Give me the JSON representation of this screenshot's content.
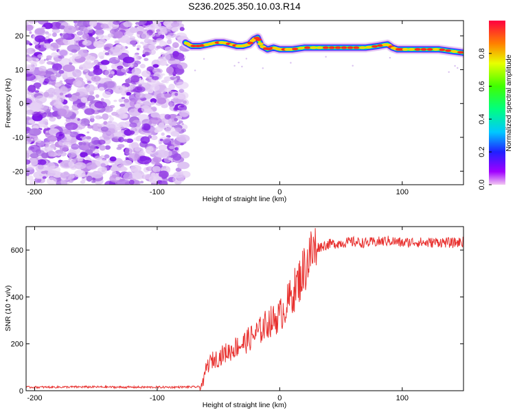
{
  "title": "S236.2025.350.10.03.R14",
  "chart_data": [
    {
      "type": "heatmap",
      "xlabel": "Height of straight line (km)",
      "ylabel": "Frequency (Hz)",
      "xlim": [
        -207,
        150
      ],
      "ylim": [
        -24,
        24.5
      ],
      "xticks": [
        -200,
        -100,
        0,
        100
      ],
      "yticks": [
        -20,
        -10,
        0,
        10,
        20
      ],
      "noise_region_x": [
        -207,
        -77
      ],
      "ridge": {
        "x": [
          -77,
          -72,
          -65,
          -58,
          -52,
          -46,
          -40,
          -35,
          -30,
          -25,
          -21,
          -18,
          -15,
          -10,
          -5,
          0,
          5,
          10,
          20,
          30,
          40,
          50,
          60,
          70,
          80,
          88,
          92,
          96,
          100,
          110,
          120,
          130,
          140,
          150
        ],
        "hz": [
          18,
          17,
          17,
          17.5,
          18,
          18,
          17.5,
          17,
          17,
          17.5,
          19,
          19.5,
          17,
          16,
          16.5,
          16,
          16,
          16,
          16.5,
          16.5,
          16.5,
          16.5,
          16.5,
          16.5,
          17,
          17.5,
          16.5,
          16,
          16,
          16,
          16,
          16,
          15.5,
          15
        ]
      },
      "colorbar": {
        "label": "Normalized spectral amplitude",
        "range": [
          0,
          1
        ],
        "ticks": [
          0.0,
          0.2,
          0.4,
          0.6,
          0.8
        ],
        "tick_labels": [
          "0.0",
          "0.2",
          "0.4",
          "0.6",
          "0.8"
        ]
      }
    },
    {
      "type": "line",
      "xlabel": "Height of straight line (km)",
      "ylabel": "SNR (10 * v/v)",
      "xlim": [
        -207,
        150
      ],
      "ylim": [
        0,
        700
      ],
      "xticks": [
        -200,
        -100,
        0,
        100
      ],
      "yticks": [
        0,
        200,
        400,
        600
      ],
      "color": "#e8312f",
      "series": [
        {
          "name": "SNR",
          "x": [
            -207,
            -190,
            -170,
            -150,
            -130,
            -110,
            -90,
            -75,
            -65,
            -62,
            -60,
            -55,
            -50,
            -45,
            -40,
            -35,
            -30,
            -25,
            -20,
            -15,
            -10,
            -5,
            0,
            5,
            10,
            15,
            20,
            25,
            30,
            40,
            50,
            60,
            70,
            80,
            90,
            100,
            110,
            120,
            130,
            140,
            150
          ],
          "y": [
            15,
            15,
            16,
            16,
            15,
            15,
            15,
            16,
            16,
            40,
            100,
            130,
            140,
            160,
            170,
            190,
            200,
            220,
            240,
            260,
            290,
            300,
            320,
            360,
            410,
            460,
            520,
            580,
            610,
            625,
            630,
            635,
            630,
            635,
            640,
            630,
            635,
            630,
            635,
            630,
            635
          ]
        }
      ]
    }
  ]
}
